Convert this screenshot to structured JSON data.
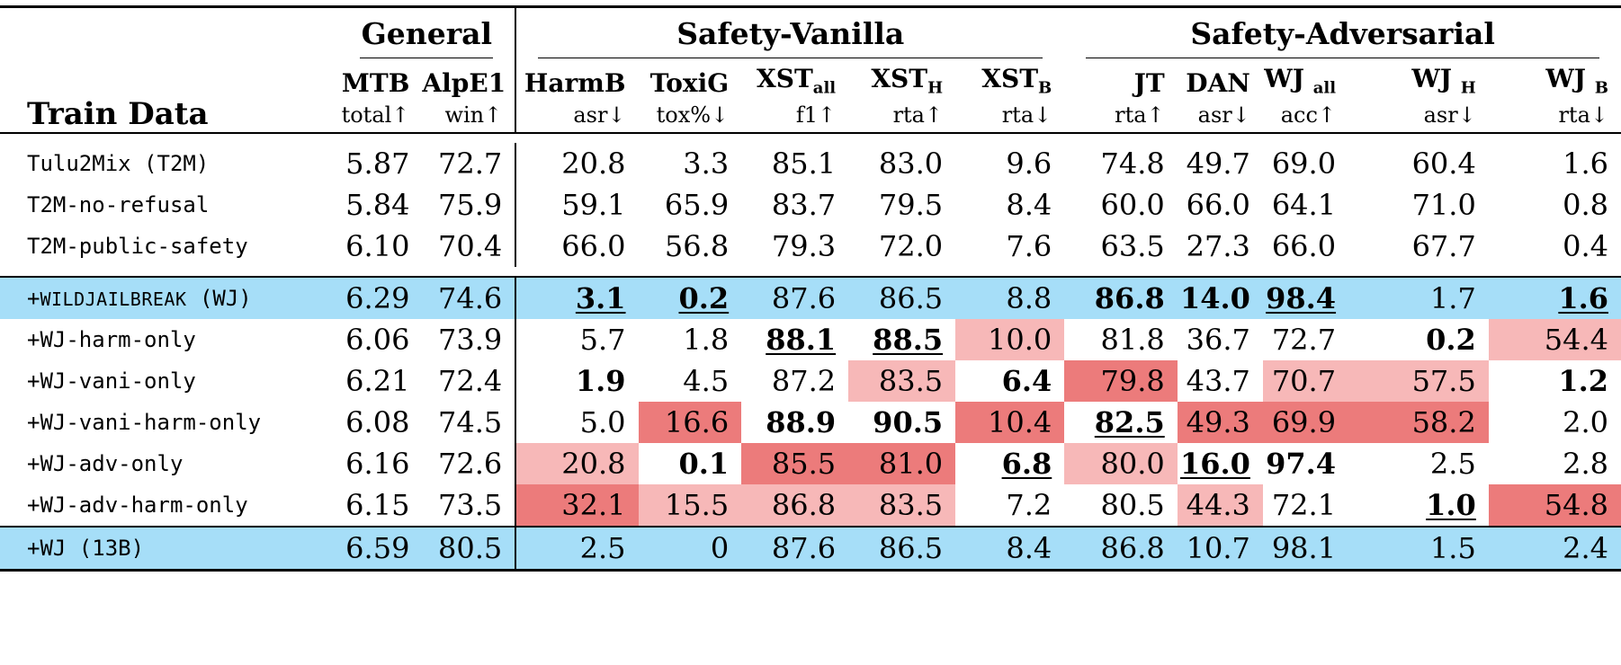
{
  "groups": {
    "general": "General",
    "safety_vanilla": "Safety-Vanilla",
    "safety_adversarial": "Safety-Adversarial"
  },
  "train_data_header": "Train Data",
  "columns": [
    {
      "name": "MTB",
      "sub": "",
      "metric": "total↑"
    },
    {
      "name": "AlpE1",
      "sub": "",
      "metric": "win↑"
    },
    {
      "name": "HarmB",
      "sub": "",
      "metric": "asr↓"
    },
    {
      "name": "ToxiG",
      "sub": "",
      "metric": "tox%↓"
    },
    {
      "name": "XST",
      "sub": "all",
      "metric": "f1↑"
    },
    {
      "name": "XST",
      "sub": "H",
      "metric": "rta↑"
    },
    {
      "name": "XST",
      "sub": "B",
      "metric": "rta↓"
    },
    {
      "name": "JT",
      "sub": "",
      "metric": "rta↑"
    },
    {
      "name": "DAN",
      "sub": "",
      "metric": "asr↓"
    },
    {
      "name": "WJ ",
      "sub": "all",
      "metric": "acc↑"
    },
    {
      "name": "WJ ",
      "sub": "H",
      "metric": "asr↓"
    },
    {
      "name": "WJ ",
      "sub": "B",
      "metric": "rta↓"
    }
  ],
  "rows": [
    {
      "label": "Tulu2Mix (T2M)",
      "values": [
        "5.87",
        "72.7",
        "20.8",
        "3.3",
        "85.1",
        "83.0",
        "9.6",
        "74.8",
        "49.7",
        "69.0",
        "60.4",
        "1.6"
      ]
    },
    {
      "label": "T2M-no-refusal",
      "values": [
        "5.84",
        "75.9",
        "59.1",
        "65.9",
        "83.7",
        "79.5",
        "8.4",
        "60.0",
        "66.0",
        "64.1",
        "71.0",
        "0.8"
      ]
    },
    {
      "label": "T2M-public-safety",
      "values": [
        "6.10",
        "70.4",
        "66.0",
        "56.8",
        "79.3",
        "72.0",
        "7.6",
        "63.5",
        "27.3",
        "66.0",
        "67.7",
        "0.4"
      ]
    },
    {
      "label_prefix": "+",
      "label_sc": "WildJailbreak",
      "label_suffix": " (WJ)",
      "values": [
        "6.29",
        "74.6",
        "3.1",
        "0.2",
        "87.6",
        "86.5",
        "8.8",
        "86.8",
        "14.0",
        "98.4",
        "1.7",
        "1.6"
      ]
    },
    {
      "label": "+WJ-harm-only",
      "values": [
        "6.06",
        "73.9",
        "5.7",
        "1.8",
        "88.1",
        "88.5",
        "10.0",
        "81.8",
        "36.7",
        "72.7",
        "0.2",
        "54.4"
      ]
    },
    {
      "label": "+WJ-vani-only",
      "values": [
        "6.21",
        "72.4",
        "1.9",
        "4.5",
        "87.2",
        "83.5",
        "6.4",
        "79.8",
        "43.7",
        "70.7",
        "57.5",
        "1.2"
      ]
    },
    {
      "label": "+WJ-vani-harm-only",
      "values": [
        "6.08",
        "74.5",
        "5.0",
        "16.6",
        "88.9",
        "90.5",
        "10.4",
        "82.5",
        "49.3",
        "69.9",
        "58.2",
        "2.0"
      ]
    },
    {
      "label": "+WJ-adv-only",
      "values": [
        "6.16",
        "72.6",
        "20.8",
        "0.1",
        "85.5",
        "81.0",
        "6.8",
        "80.0",
        "16.0",
        "97.4",
        "2.5",
        "2.8"
      ]
    },
    {
      "label": "+WJ-adv-harm-only",
      "values": [
        "6.15",
        "73.5",
        "32.1",
        "15.5",
        "86.8",
        "83.5",
        "7.2",
        "80.5",
        "44.3",
        "72.1",
        "1.0",
        "54.8"
      ]
    },
    {
      "label": "+WJ (13B)",
      "values": [
        "6.59",
        "80.5",
        "2.5",
        "0",
        "87.6",
        "86.5",
        "8.4",
        "86.8",
        "10.7",
        "98.1",
        "1.5",
        "2.4"
      ]
    }
  ],
  "colors": {
    "highlight_row": "#a6def8",
    "light_red": "#f7b8b8",
    "dark_red": "#ec7b7b"
  }
}
